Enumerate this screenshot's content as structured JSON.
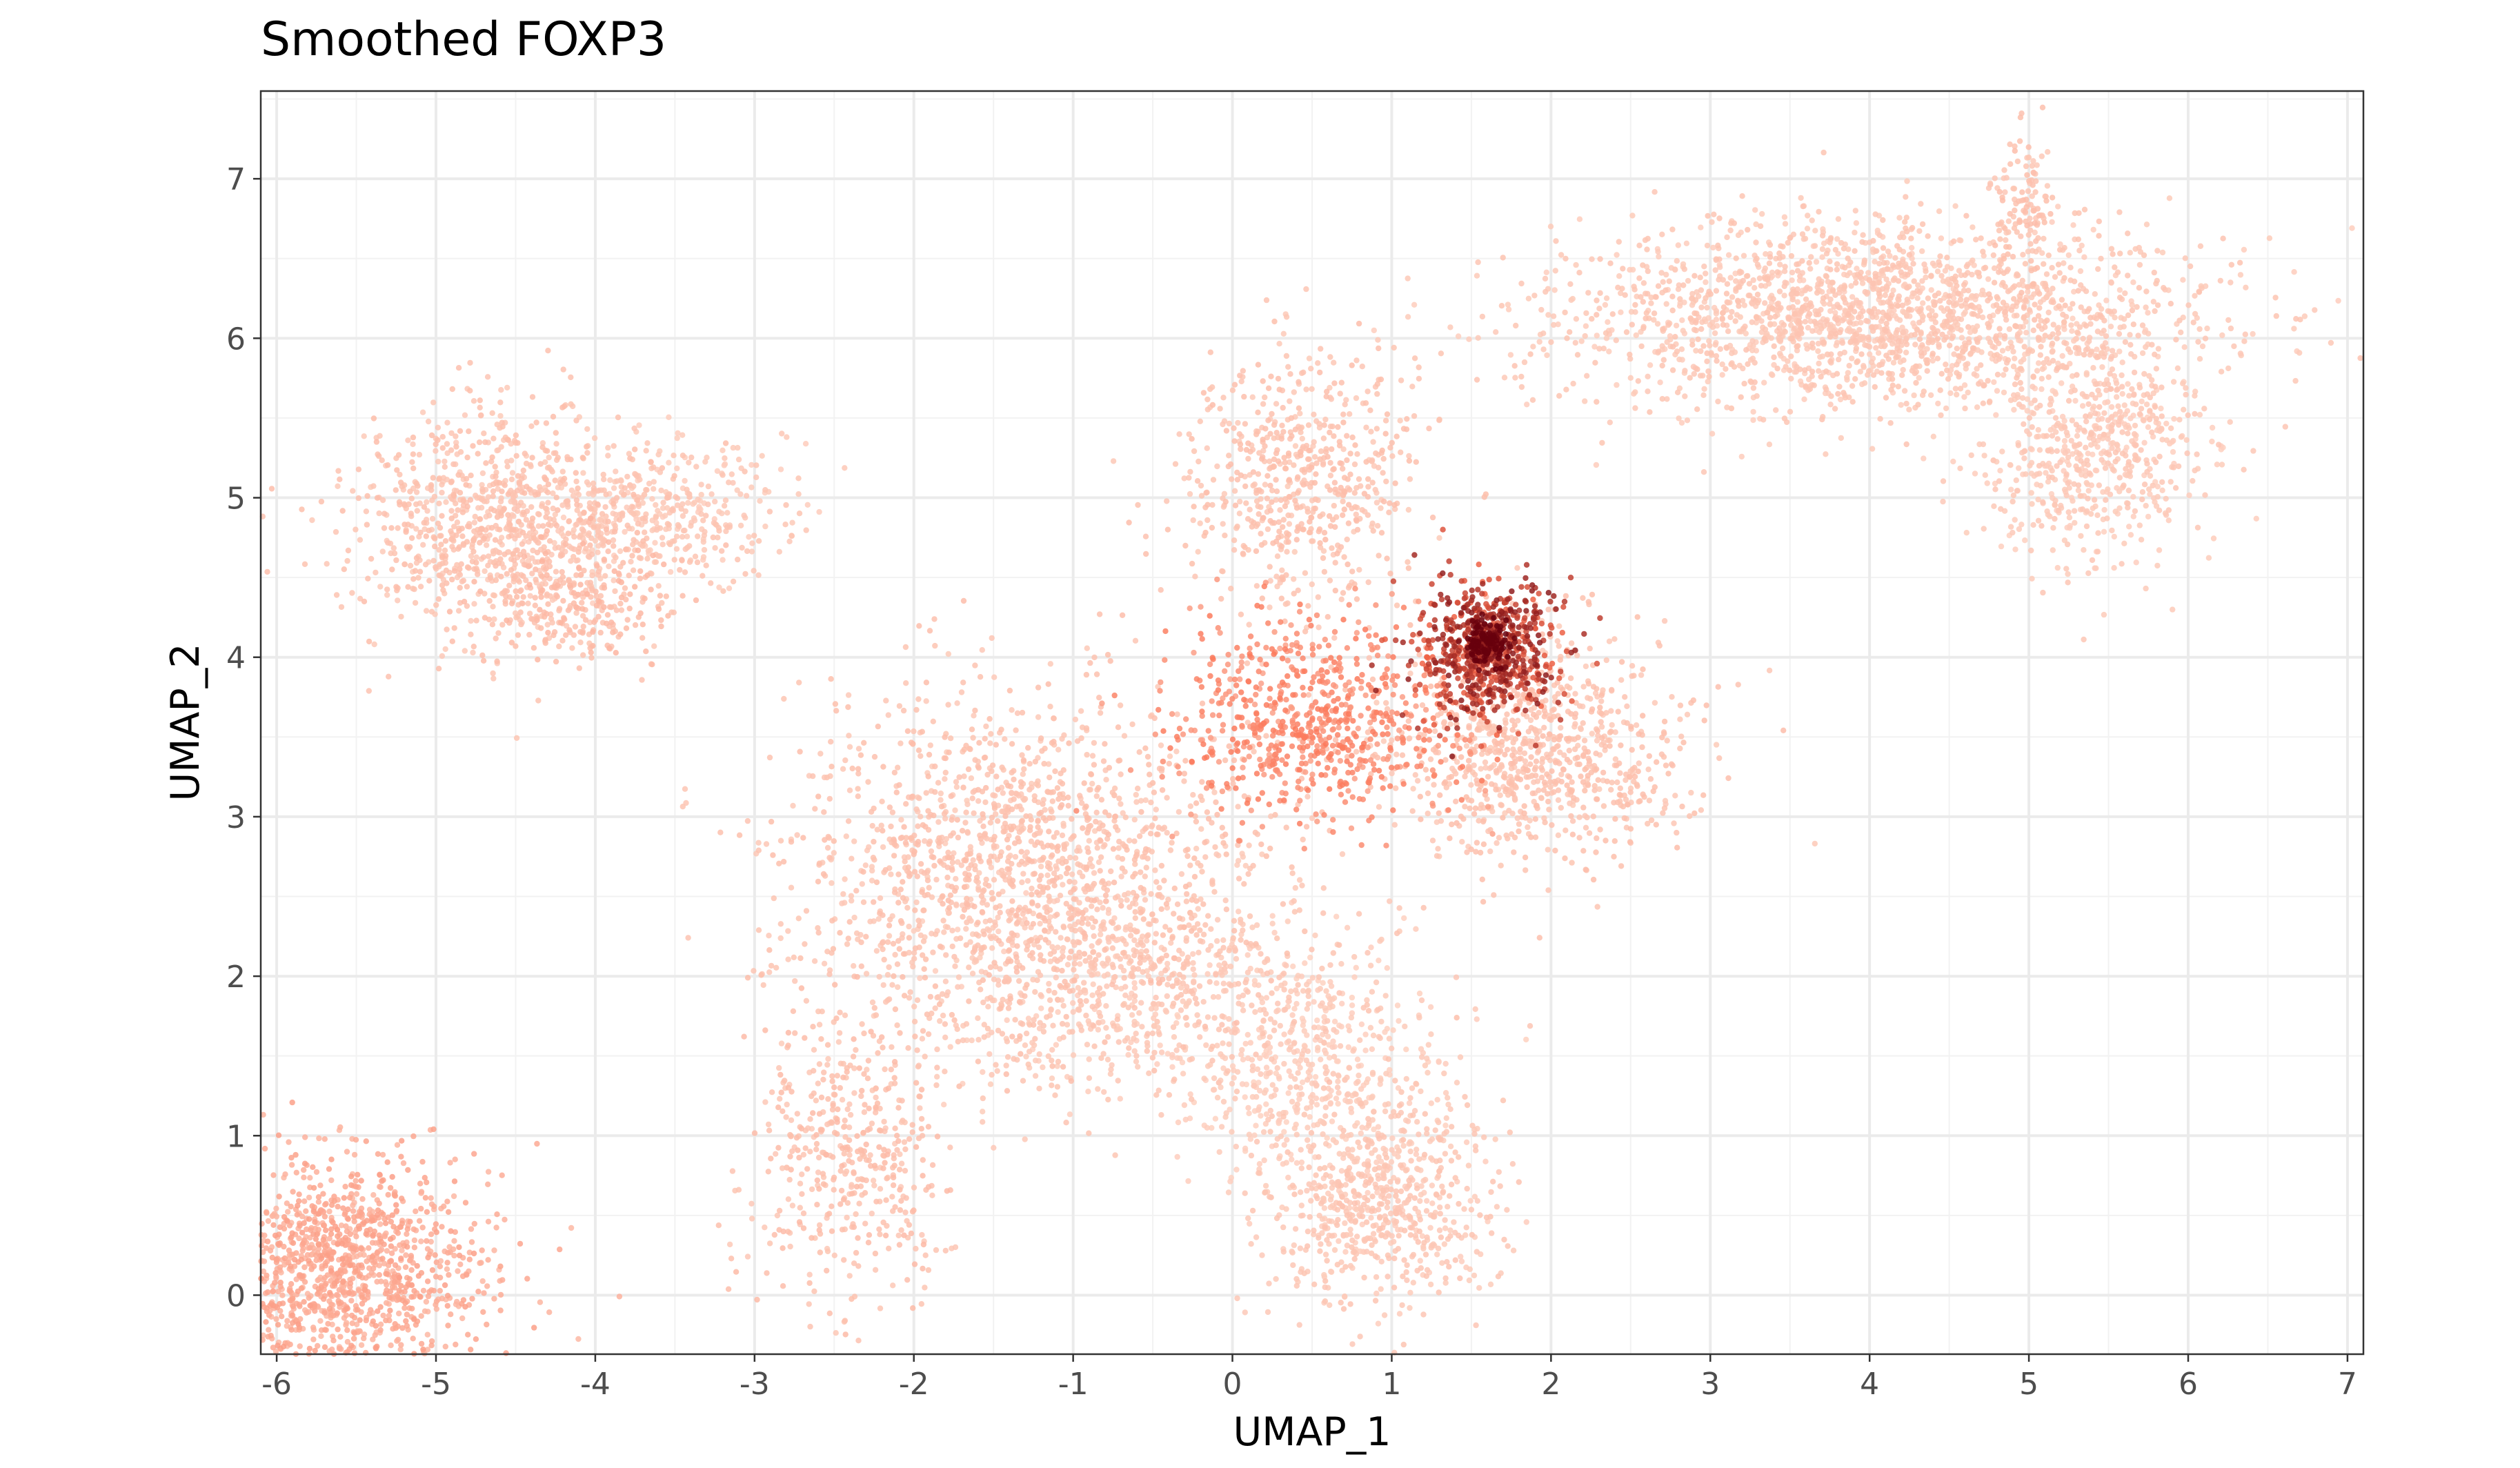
{
  "chart_data": {
    "type": "scatter",
    "title": "Smoothed FOXP3",
    "xlabel": "UMAP_1",
    "ylabel": "UMAP_2",
    "xlim": [
      -6.1,
      7.1
    ],
    "ylim": [
      -0.37,
      7.55
    ],
    "x_ticks": [
      -6,
      -5,
      -4,
      -3,
      -2,
      -1,
      0,
      1,
      2,
      3,
      4,
      5,
      6,
      7
    ],
    "x_tick_labels": [
      "-6",
      "-5",
      "-4",
      "-3",
      "-2",
      "-1",
      "0",
      "1",
      "2",
      "3",
      "4",
      "5",
      "6",
      "7"
    ],
    "y_ticks": [
      0,
      1,
      2,
      3,
      4,
      5,
      6,
      7
    ],
    "y_tick_labels": [
      "0",
      "1",
      "2",
      "3",
      "4",
      "5",
      "6",
      "7"
    ],
    "grid": true,
    "legend": "none",
    "color_scale": {
      "low": "#fee0d2",
      "mid": "#fb6a4a",
      "high": "#67000d"
    },
    "clusters": [
      {
        "cx": -5.6,
        "cy": 0.15,
        "sx": 0.45,
        "sy": 0.35,
        "n": 1300,
        "level": 0.22
      },
      {
        "cx": -4.6,
        "cy": 4.85,
        "sx": 0.45,
        "sy": 0.35,
        "n": 900,
        "level": 0.12
      },
      {
        "cx": -3.6,
        "cy": 4.9,
        "sx": 0.4,
        "sy": 0.22,
        "n": 400,
        "level": 0.1
      },
      {
        "cx": -4.1,
        "cy": 4.35,
        "sx": 0.3,
        "sy": 0.2,
        "n": 250,
        "level": 0.15
      },
      {
        "cx": -1.3,
        "cy": 2.7,
        "sx": 0.75,
        "sy": 0.55,
        "n": 1600,
        "level": 0.12
      },
      {
        "cx": -0.6,
        "cy": 1.9,
        "sx": 0.7,
        "sy": 0.35,
        "n": 700,
        "level": 0.1
      },
      {
        "cx": -2.4,
        "cy": 0.9,
        "sx": 0.3,
        "sy": 0.45,
        "n": 450,
        "level": 0.13
      },
      {
        "cx": 0.9,
        "cy": 0.6,
        "sx": 0.35,
        "sy": 0.35,
        "n": 700,
        "level": 0.1
      },
      {
        "cx": 0.5,
        "cy": 1.4,
        "sx": 0.4,
        "sy": 0.35,
        "n": 450,
        "level": 0.08
      },
      {
        "cx": 0.4,
        "cy": 5.1,
        "sx": 0.35,
        "sy": 0.4,
        "n": 600,
        "level": 0.12
      },
      {
        "cx": 0.5,
        "cy": 3.6,
        "sx": 0.45,
        "sy": 0.3,
        "n": 700,
        "level": 0.35
      },
      {
        "cx": 1.9,
        "cy": 3.4,
        "sx": 0.45,
        "sy": 0.35,
        "n": 900,
        "level": 0.12
      },
      {
        "cx": 1.6,
        "cy": 4.05,
        "sx": 0.22,
        "sy": 0.22,
        "n": 650,
        "level": 0.7
      },
      {
        "cx": 1.6,
        "cy": 4.08,
        "sx": 0.07,
        "sy": 0.07,
        "n": 200,
        "level": 1.0
      },
      {
        "cx": 4.0,
        "cy": 6.15,
        "sx": 1.0,
        "sy": 0.28,
        "n": 2000,
        "level": 0.1
      },
      {
        "cx": 5.4,
        "cy": 5.3,
        "sx": 0.35,
        "sy": 0.35,
        "n": 650,
        "level": 0.09
      },
      {
        "cx": 4.95,
        "cy": 6.8,
        "sx": 0.1,
        "sy": 0.25,
        "n": 120,
        "level": 0.12
      }
    ]
  }
}
